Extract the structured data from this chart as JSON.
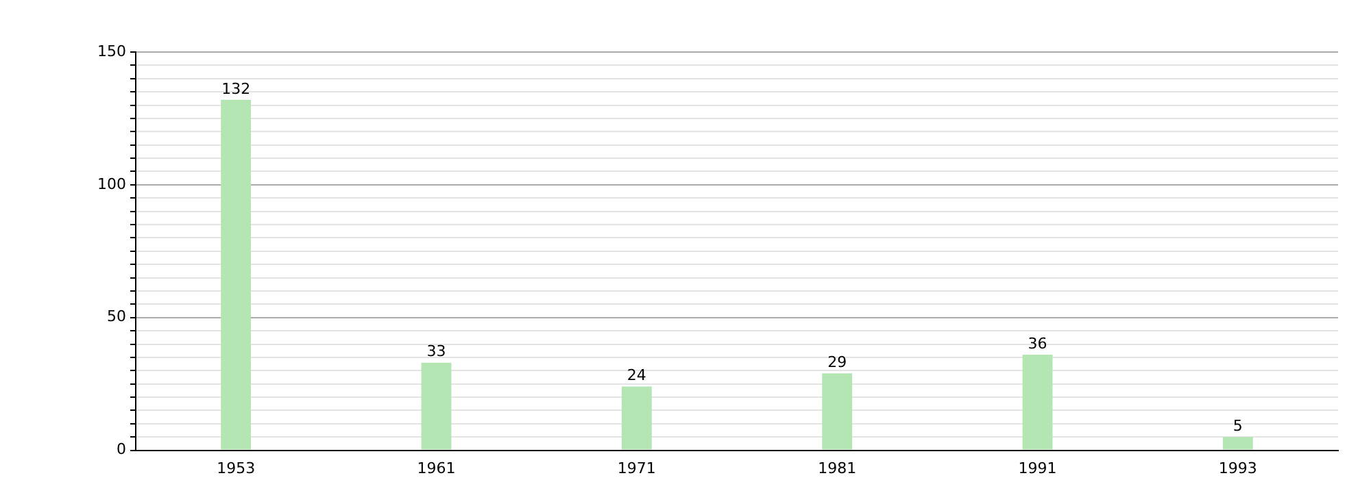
{
  "chart_data": {
    "type": "bar",
    "categories": [
      "1953",
      "1961",
      "1971",
      "1981",
      "1991",
      "1993"
    ],
    "values": [
      132,
      33,
      24,
      29,
      36,
      5
    ],
    "color": "#b3e6b3",
    "ylim": [
      0,
      150
    ],
    "yticks": [
      0,
      {
        "value": 5,
        "label": null
      },
      {
        "value": 10,
        "label": null
      },
      {
        "value": 15,
        "label": null
      },
      {
        "value": 20,
        "label": null
      },
      {
        "value": 25,
        "label": null
      },
      {
        "value": 30,
        "label": null
      },
      {
        "value": 35,
        "label": null
      },
      {
        "value": 40,
        "label": null
      },
      {
        "value": 45,
        "label": null
      },
      50,
      {
        "value": 55,
        "label": null
      },
      {
        "value": 60,
        "label": null
      },
      {
        "value": 65,
        "label": null
      },
      {
        "value": 70,
        "label": null
      },
      {
        "value": 75,
        "label": null
      },
      {
        "value": 80,
        "label": null
      },
      {
        "value": 85,
        "label": null
      },
      {
        "value": 90,
        "label": null
      },
      {
        "value": 95,
        "label": null
      },
      100,
      {
        "value": 105,
        "label": null
      },
      {
        "value": 110,
        "label": null
      },
      {
        "value": 115,
        "label": null
      },
      {
        "value": 120,
        "label": null
      },
      {
        "value": 125,
        "label": null
      },
      {
        "value": 130,
        "label": null
      },
      {
        "value": 135,
        "label": null
      },
      {
        "value": 140,
        "label": null
      },
      {
        "value": 145,
        "label": null
      },
      150
    ],
    "grid": "y",
    "data_labels": true
  }
}
